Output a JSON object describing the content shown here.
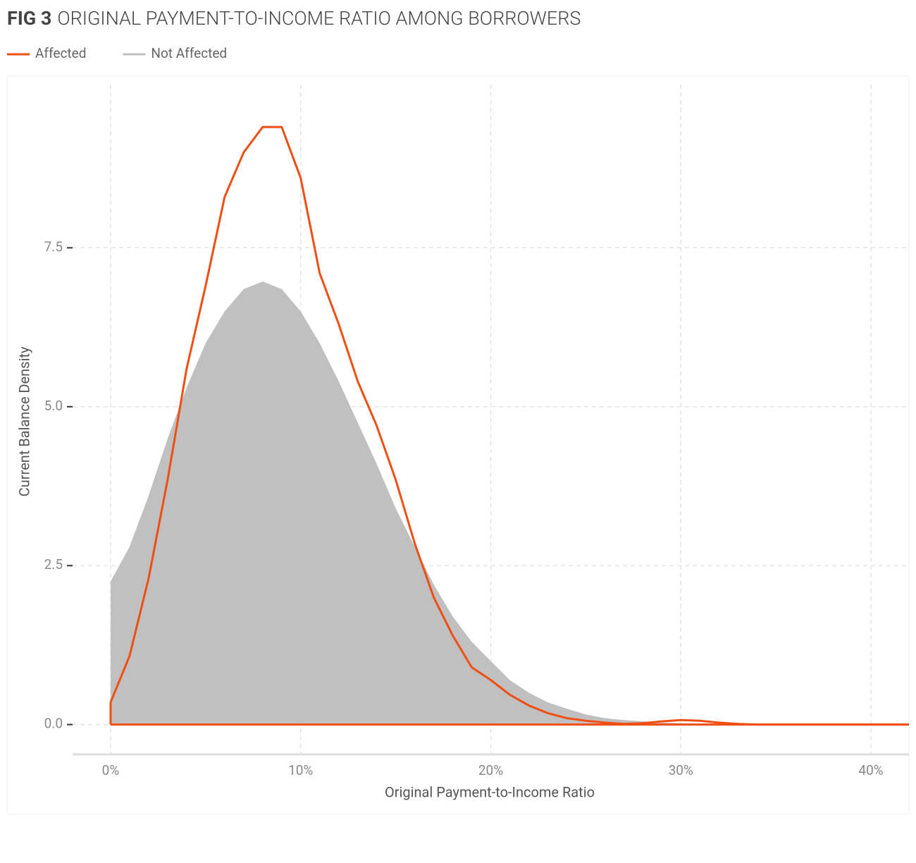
{
  "chart_data": {
    "type": "density",
    "figure_label": "FIG 3",
    "title": "ORIGINAL PAYMENT-TO-INCOME RATIO AMONG BORROWERS",
    "x_label": "Original Payment-to-Income Ratio",
    "y_label": "Current Balance Density",
    "x": [
      0,
      1,
      2,
      3,
      4,
      5,
      6,
      7,
      8,
      9,
      10,
      11,
      12,
      13,
      14,
      15,
      16,
      17,
      18,
      19,
      20,
      21,
      22,
      23,
      24,
      25,
      26,
      27,
      28,
      29,
      30,
      31,
      32,
      33,
      34,
      35,
      36,
      37,
      38,
      39,
      40,
      41,
      42
    ],
    "series": [
      {
        "name": "Affected",
        "color": "#f04e12",
        "fill": false,
        "values": [
          0.35,
          1.08,
          2.3,
          3.85,
          5.6,
          6.9,
          8.3,
          9.0,
          9.4,
          9.4,
          8.6,
          7.1,
          6.3,
          5.4,
          4.7,
          3.85,
          2.85,
          2.0,
          1.4,
          0.9,
          0.7,
          0.47,
          0.3,
          0.18,
          0.1,
          0.06,
          0.03,
          0.01,
          0.02,
          0.05,
          0.07,
          0.06,
          0.03,
          0.01,
          0,
          0,
          0,
          0,
          0,
          0,
          0,
          0,
          0
        ]
      },
      {
        "name": "Not Affected",
        "color": "#c0c0c0",
        "fill": true,
        "values": [
          2.25,
          2.8,
          3.6,
          4.5,
          5.3,
          6.0,
          6.5,
          6.85,
          6.97,
          6.85,
          6.5,
          6.0,
          5.4,
          4.75,
          4.1,
          3.4,
          2.8,
          2.2,
          1.7,
          1.3,
          1.0,
          0.7,
          0.5,
          0.35,
          0.25,
          0.16,
          0.1,
          0.07,
          0.05,
          0.03,
          0.02,
          0.01,
          0.01,
          0,
          0,
          0,
          0,
          0,
          0,
          0,
          0,
          0,
          0
        ]
      }
    ],
    "xlim": [
      -2,
      42
    ],
    "xticks": [
      {
        "value": 0,
        "label": "0%"
      },
      {
        "value": 10,
        "label": "10%"
      },
      {
        "value": 20,
        "label": "20%"
      },
      {
        "value": 30,
        "label": "30%"
      },
      {
        "value": 40,
        "label": "40%"
      }
    ],
    "ylim": [
      -0.47,
      10.2
    ],
    "yticks": [
      {
        "value": 0,
        "label": "0.0"
      },
      2.5,
      {
        "value": 5,
        "label": "5.0"
      },
      7.5
    ],
    "grid": true,
    "legend": "top-left"
  }
}
